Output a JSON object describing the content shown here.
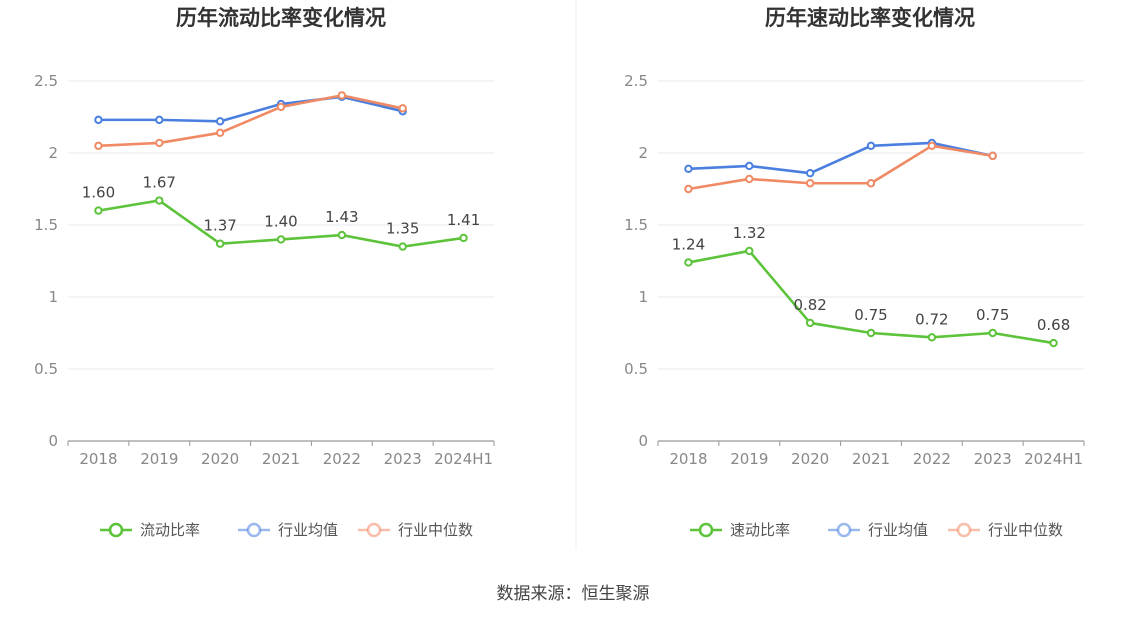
{
  "source_text": "数据来源：恒生聚源",
  "legend": {
    "left_primary": "流动比率",
    "right_primary": "速动比率",
    "avg": "行业均值",
    "median": "行业中位数"
  },
  "colors": {
    "primary": "#5cc33a",
    "avg": "#4a7fe0",
    "median": "#f08a64",
    "grid": "#e6eaf2",
    "axis": "#999999"
  },
  "chart_data": [
    {
      "type": "line",
      "title": "历年流动比率变化情况",
      "categories": [
        "2018",
        "2019",
        "2020",
        "2021",
        "2022",
        "2023",
        "2024H1"
      ],
      "ylim": [
        0,
        2.5
      ],
      "yticks": [
        "0",
        "0.5",
        "1",
        "1.5",
        "2",
        "2.5"
      ],
      "grid": true,
      "legend_position": "bottom",
      "series": [
        {
          "name": "流动比率",
          "key": "primary",
          "values": [
            1.6,
            1.67,
            1.37,
            1.4,
            1.43,
            1.35,
            1.41
          ],
          "labels": [
            "1.60",
            "1.67",
            "1.37",
            "1.40",
            "1.43",
            "1.35",
            "1.41"
          ]
        },
        {
          "name": "行业均值",
          "key": "avg",
          "values": [
            2.23,
            2.23,
            2.22,
            2.34,
            2.39,
            2.29,
            null
          ]
        },
        {
          "name": "行业中位数",
          "key": "median",
          "values": [
            2.05,
            2.07,
            2.14,
            2.32,
            2.4,
            2.31,
            null
          ]
        }
      ]
    },
    {
      "type": "line",
      "title": "历年速动比率变化情况",
      "categories": [
        "2018",
        "2019",
        "2020",
        "2021",
        "2022",
        "2023",
        "2024H1"
      ],
      "ylim": [
        0,
        2.5
      ],
      "yticks": [
        "0",
        "0.5",
        "1",
        "1.5",
        "2",
        "2.5"
      ],
      "grid": true,
      "legend_position": "bottom",
      "series": [
        {
          "name": "速动比率",
          "key": "primary",
          "values": [
            1.24,
            1.32,
            0.82,
            0.75,
            0.72,
            0.75,
            0.68
          ],
          "labels": [
            "1.24",
            "1.32",
            "0.82",
            "0.75",
            "0.72",
            "0.75",
            "0.68"
          ]
        },
        {
          "name": "行业均值",
          "key": "avg",
          "values": [
            1.89,
            1.91,
            1.86,
            2.05,
            2.07,
            1.98,
            null
          ]
        },
        {
          "name": "行业中位数",
          "key": "median",
          "values": [
            1.75,
            1.82,
            1.79,
            1.79,
            2.05,
            1.98,
            null
          ]
        }
      ]
    }
  ]
}
